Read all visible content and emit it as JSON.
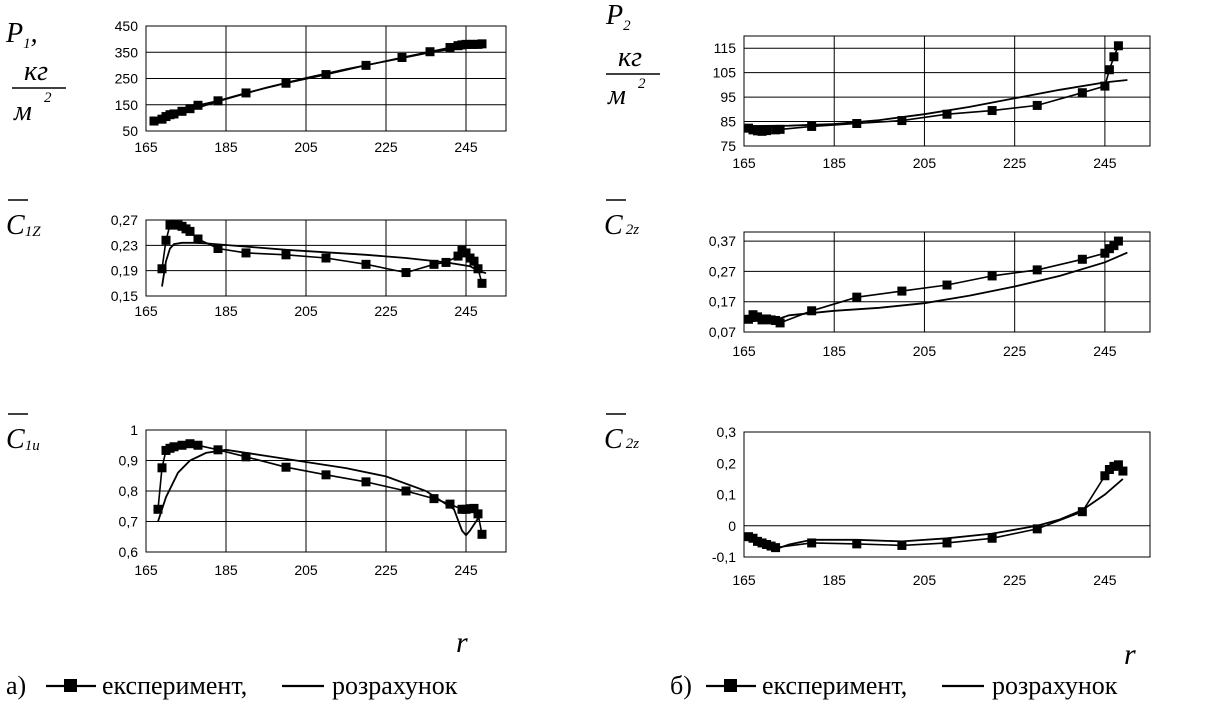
{
  "panels": [
    {
      "id": "P1",
      "ylabel": {
        "main": "P",
        "sub": "1",
        "suffix": ",",
        "unit_num": "кг",
        "unit_den": "м",
        "unit_pow": "2"
      },
      "chart_data": {
        "type": "line",
        "xlim": [
          165,
          255
        ],
        "ylim": [
          50,
          450
        ],
        "xticks": [
          165,
          185,
          205,
          225,
          245
        ],
        "yticks": [
          50,
          150,
          250,
          350,
          450
        ],
        "ytick_labels": [
          "50",
          "150",
          "250",
          "350",
          "450"
        ],
        "grid": true,
        "series": [
          {
            "key": "experiment",
            "marker": "square",
            "x": [
              167,
              169,
              170,
              171,
              172,
              174,
              176,
              178,
              183,
              190,
              200,
              210,
              220,
              229,
              236,
              241,
              243,
              244,
              245,
              246,
              247,
              248,
              249
            ],
            "y": [
              88,
              95,
              105,
              112,
              115,
              125,
              135,
              148,
              165,
              195,
              232,
              265,
              300,
              330,
              352,
              368,
              375,
              378,
              380,
              380,
              380,
              380,
              382
            ]
          },
          {
            "key": "calculation",
            "marker": "none",
            "x": [
              167,
              175,
              185,
              195,
              205,
              215,
              225,
              235,
              245,
              249
            ],
            "y": [
              92,
              125,
              172,
              215,
              252,
              285,
              316,
              346,
              372,
              380
            ]
          }
        ]
      }
    },
    {
      "id": "P2",
      "ylabel": {
        "main": "P",
        "sub": "2",
        "suffix": "",
        "unit_num": "кг",
        "unit_den": "м",
        "unit_pow": "2"
      },
      "chart_data": {
        "type": "line",
        "xlim": [
          165,
          255
        ],
        "ylim": [
          75,
          120
        ],
        "xticks": [
          165,
          185,
          205,
          225,
          245
        ],
        "yticks": [
          75,
          85,
          95,
          105,
          115
        ],
        "ytick_labels": [
          "75",
          "85",
          "95",
          "105",
          "115"
        ],
        "grid": true,
        "series": [
          {
            "key": "experiment",
            "marker": "square",
            "x": [
              166,
              167,
              168,
              169,
              170,
              172,
              173,
              180,
              190,
              200,
              210,
              220,
              230,
              240,
              245,
              246,
              247,
              248
            ],
            "y": [
              82.3,
              81.6,
              81.2,
              81.0,
              81.3,
              81.6,
              81.8,
              83.0,
              84.2,
              85.4,
              88.0,
              89.5,
              91.6,
              96.8,
              99.5,
              106.2,
              111.5,
              116.0
            ]
          },
          {
            "key": "calculation",
            "marker": "none",
            "x": [
              166,
              175,
              185,
              195,
              205,
              215,
              225,
              235,
              245,
              250
            ],
            "y": [
              83.2,
              83.3,
              84.0,
              85.6,
              88.0,
              91.0,
              94.5,
              98.0,
              101.0,
              102.0
            ]
          }
        ]
      }
    },
    {
      "id": "C1Z",
      "ylabel": {
        "main": "C",
        "sub": "1Z",
        "suffix": "",
        "unit_num": "",
        "unit_den": "",
        "unit_pow": ""
      },
      "chart_data": {
        "type": "line",
        "xlim": [
          165,
          255
        ],
        "ylim": [
          0.15,
          0.27
        ],
        "xticks": [
          165,
          185,
          205,
          225,
          245
        ],
        "yticks": [
          0.15,
          0.19,
          0.23,
          0.27
        ],
        "ytick_labels": [
          "0,15",
          "0,19",
          "0,23",
          "0,27"
        ],
        "grid": true,
        "series": [
          {
            "key": "experiment",
            "marker": "square",
            "x": [
              169,
              170,
              171,
              172,
              173,
              174,
              175,
              176,
              178,
              183,
              190,
              200,
              210,
              220,
              230,
              237,
              240,
              243,
              244,
              245,
              246,
              247,
              248,
              249
            ],
            "y": [
              0.193,
              0.238,
              0.262,
              0.262,
              0.262,
              0.26,
              0.256,
              0.252,
              0.24,
              0.225,
              0.218,
              0.215,
              0.21,
              0.2,
              0.187,
              0.2,
              0.203,
              0.213,
              0.222,
              0.218,
              0.21,
              0.205,
              0.193,
              0.17
            ]
          },
          {
            "key": "calculation",
            "marker": "none",
            "x": [
              169,
              170,
              171,
              172,
              174,
              177,
              180,
              190,
              200,
              210,
              220,
              230,
              240,
              246,
              248,
              250
            ],
            "y": [
              0.165,
              0.205,
              0.225,
              0.232,
              0.234,
              0.234,
              0.233,
              0.228,
              0.223,
              0.219,
              0.215,
              0.21,
              0.203,
              0.197,
              0.19,
              0.186
            ]
          }
        ]
      }
    },
    {
      "id": "C2z_top",
      "ylabel": {
        "main": "C",
        "sub": "2z",
        "suffix": "",
        "unit_num": "",
        "unit_den": "",
        "unit_pow": ""
      },
      "chart_data": {
        "type": "line",
        "xlim": [
          165,
          255
        ],
        "ylim": [
          0.07,
          0.4
        ],
        "xticks": [
          165,
          185,
          205,
          225,
          245
        ],
        "yticks": [
          0.07,
          0.17,
          0.27,
          0.37
        ],
        "ytick_labels": [
          "0,07",
          "0,17",
          "0,27",
          "0,37"
        ],
        "grid": true,
        "series": [
          {
            "key": "experiment",
            "marker": "square",
            "x": [
              166,
              167,
              168,
              169,
              170,
              171,
              172,
              173,
              180,
              190,
              200,
              210,
              220,
              230,
              240,
              245,
              246,
              247,
              248
            ],
            "y": [
              0.112,
              0.127,
              0.12,
              0.11,
              0.113,
              0.11,
              0.108,
              0.1,
              0.14,
              0.185,
              0.205,
              0.225,
              0.255,
              0.275,
              0.31,
              0.33,
              0.345,
              0.355,
              0.37
            ]
          },
          {
            "key": "calculation",
            "marker": "none",
            "x": [
              166,
              172,
              175,
              185,
              195,
              205,
              215,
              225,
              235,
              245,
              250
            ],
            "y": [
              0.105,
              0.11,
              0.125,
              0.14,
              0.15,
              0.165,
              0.19,
              0.22,
              0.255,
              0.3,
              0.332
            ]
          }
        ]
      }
    },
    {
      "id": "C1u",
      "ylabel": {
        "main": "C",
        "sub": "1u",
        "suffix": "",
        "unit_num": "",
        "unit_den": "",
        "unit_pow": ""
      },
      "chart_data": {
        "type": "line",
        "xlim": [
          165,
          255
        ],
        "ylim": [
          0.6,
          1.0
        ],
        "xticks": [
          165,
          185,
          205,
          225,
          245
        ],
        "yticks": [
          0.6,
          0.7,
          0.8,
          0.9,
          1.0
        ],
        "ytick_labels": [
          "0,6",
          "0,7",
          "0,8",
          "0,9",
          "1"
        ],
        "grid": true,
        "series": [
          {
            "key": "experiment",
            "marker": "square",
            "x": [
              168,
              169,
              170,
              171,
              172,
              174,
              176,
              178,
              183,
              190,
              200,
              210,
              220,
              230,
              237,
              241,
              244,
              245,
              246,
              247,
              248,
              249
            ],
            "y": [
              0.74,
              0.876,
              0.933,
              0.94,
              0.945,
              0.95,
              0.955,
              0.95,
              0.935,
              0.912,
              0.878,
              0.853,
              0.83,
              0.8,
              0.775,
              0.757,
              0.74,
              0.74,
              0.742,
              0.743,
              0.725,
              0.658
            ]
          },
          {
            "key": "calculation",
            "marker": "none",
            "x": [
              168,
              170,
              173,
              176,
              180,
              185,
              195,
              205,
              215,
              225,
              235,
              242,
              244,
              245,
              246,
              248,
              249
            ],
            "y": [
              0.7,
              0.78,
              0.86,
              0.9,
              0.925,
              0.935,
              0.915,
              0.895,
              0.875,
              0.848,
              0.8,
              0.74,
              0.67,
              0.655,
              0.67,
              0.71,
              0.72
            ]
          }
        ]
      }
    },
    {
      "id": "C2z_bottom",
      "ylabel": {
        "main": "C",
        "sub": "2z",
        "suffix": "",
        "unit_num": "",
        "unit_den": "",
        "unit_pow": ""
      },
      "chart_data": {
        "type": "line",
        "xlim": [
          165,
          255
        ],
        "ylim": [
          -0.1,
          0.3
        ],
        "xticks": [
          165,
          185,
          205,
          225,
          245
        ],
        "yticks": [
          -0.1,
          0.0,
          0.1,
          0.2,
          0.3
        ],
        "ytick_labels": [
          "-0,1",
          "0",
          "0,1",
          "0,2",
          "0,3"
        ],
        "grid": false,
        "series": [
          {
            "key": "experiment",
            "marker": "square",
            "x": [
              166,
              167,
              168,
              169,
              170,
              171,
              172,
              180,
              190,
              200,
              210,
              220,
              230,
              240,
              245,
              246,
              247,
              248,
              249
            ],
            "y": [
              -0.035,
              -0.04,
              -0.05,
              -0.055,
              -0.06,
              -0.065,
              -0.07,
              -0.055,
              -0.058,
              -0.063,
              -0.055,
              -0.04,
              -0.01,
              0.045,
              0.16,
              0.18,
              0.19,
              0.195,
              0.175
            ]
          },
          {
            "key": "calculation",
            "marker": "none",
            "x": [
              166,
              170,
              172,
              175,
              180,
              190,
              200,
              210,
              220,
              230,
              235,
              240,
              245,
              249
            ],
            "y": [
              -0.04,
              -0.06,
              -0.075,
              -0.06,
              -0.045,
              -0.045,
              -0.05,
              -0.04,
              -0.025,
              0.0,
              0.02,
              0.05,
              0.1,
              0.15
            ]
          }
        ]
      }
    }
  ],
  "x_axis_symbol": "r",
  "legends": [
    {
      "id": "a",
      "prefix": "а)",
      "experiment": "експеримент,",
      "calculation": "розрахунок"
    },
    {
      "id": "b",
      "prefix": "б)",
      "experiment": "експеримент,",
      "calculation": "розрахунок"
    }
  ]
}
